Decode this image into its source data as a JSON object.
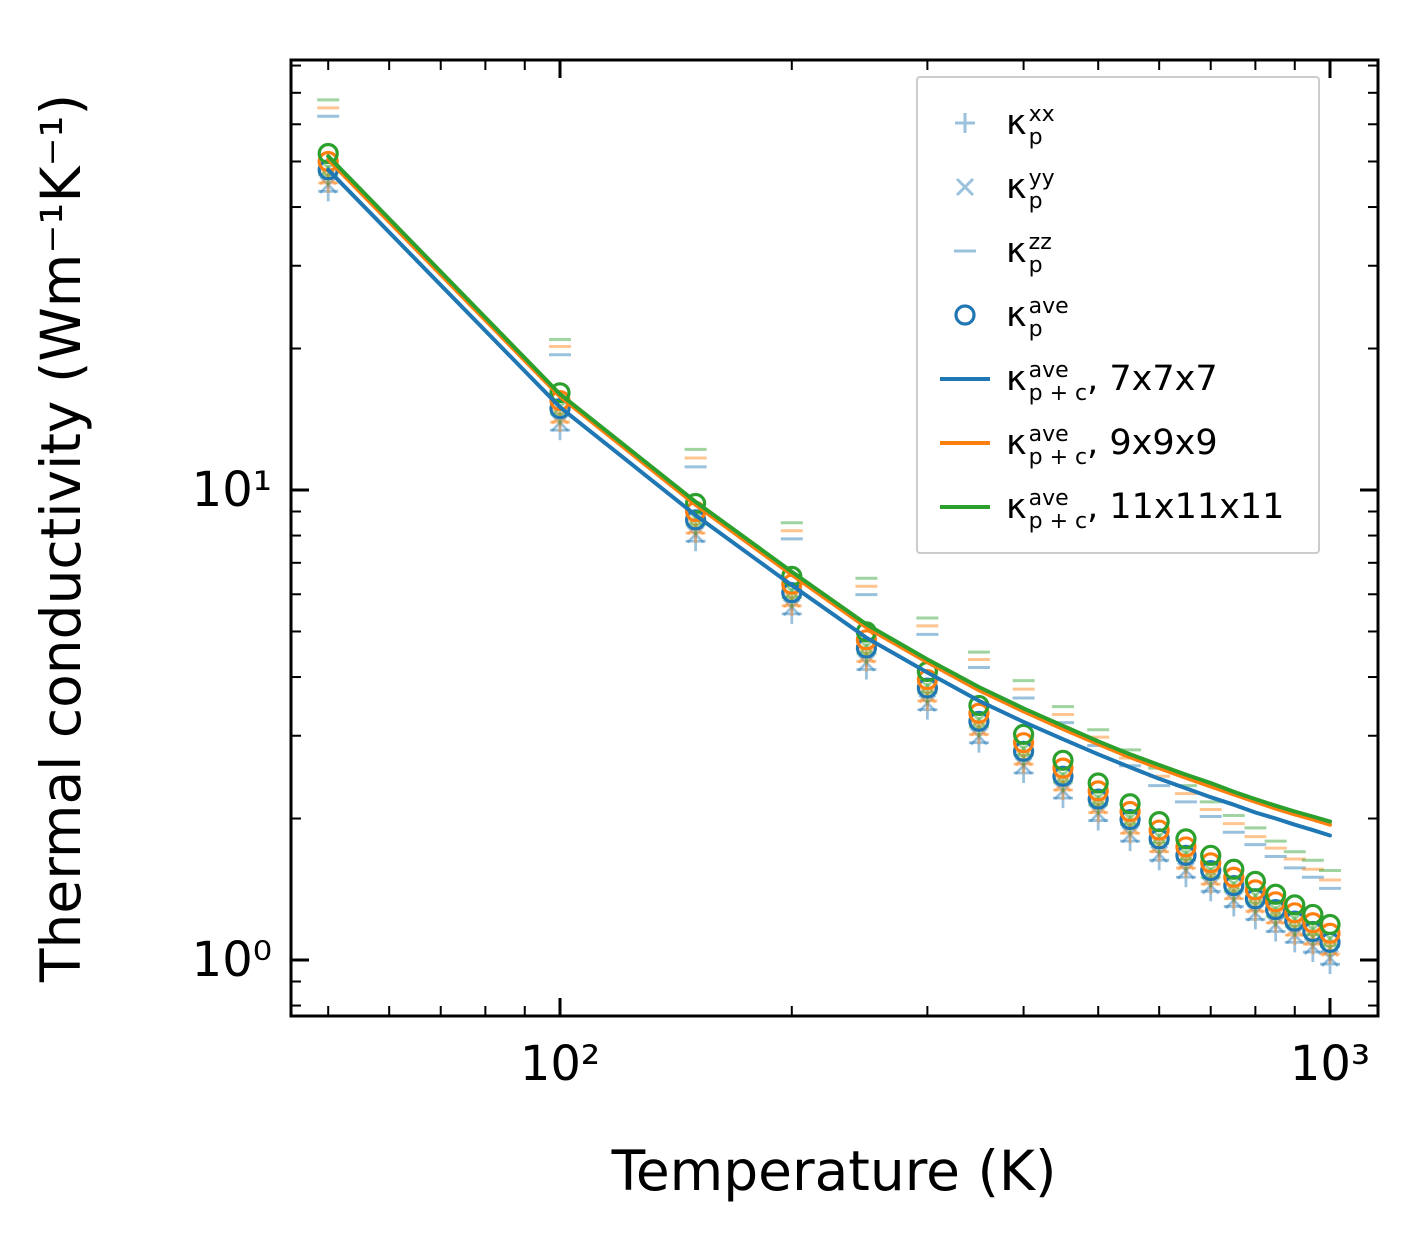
{
  "chart_data": {
    "type": "scatter+line",
    "title": "",
    "xlabel": "Temperature (K)",
    "ylabel": "Thermal conductivity (Wm⁻¹K⁻¹)",
    "x_scale": "log",
    "y_scale": "log",
    "x_range": [
      44.7,
      1154
    ],
    "y_range": [
      0.76,
      82
    ],
    "grid": false,
    "x_ticks": [
      {
        "value": 100,
        "label": "10²"
      },
      {
        "value": 1000,
        "label": "10³"
      }
    ],
    "y_ticks": [
      {
        "value": 10,
        "label": "10¹"
      },
      {
        "value": 1,
        "label": "10⁰"
      }
    ],
    "x_minor_ticks": [
      50,
      60,
      70,
      80,
      90,
      200,
      300,
      400,
      500,
      600,
      700,
      800,
      900
    ],
    "y_minor_ticks": [
      0.8,
      0.9,
      2,
      3,
      4,
      5,
      6,
      7,
      8,
      9,
      20,
      30,
      40,
      50,
      60,
      70,
      80
    ],
    "colors": {
      "blue": "#1f77b4",
      "orange": "#ff7f0e",
      "green": "#2ca02c"
    },
    "temperatures": [
      50,
      100,
      150,
      200,
      250,
      300,
      350,
      400,
      450,
      500,
      550,
      600,
      650,
      700,
      750,
      800,
      850,
      900,
      950,
      1000
    ],
    "scatter_series": [
      {
        "name": "kappa-p-xx-7x7x7",
        "marker": "plus",
        "color": "#1f77b4",
        "opacity": 0.45,
        "values": [
          43.2,
          13.4,
          7.78,
          5.45,
          4.15,
          3.41,
          2.9,
          2.5,
          2.21,
          1.98,
          1.79,
          1.63,
          1.5,
          1.4,
          1.3,
          1.22,
          1.15,
          1.09,
          1.04,
          0.98
        ]
      },
      {
        "name": "kappa-p-yy-7x7x7",
        "marker": "x",
        "color": "#1f77b4",
        "opacity": 0.45,
        "values": [
          44.6,
          13.9,
          8.04,
          5.63,
          4.29,
          3.52,
          2.99,
          2.59,
          2.29,
          2.05,
          1.85,
          1.68,
          1.55,
          1.44,
          1.34,
          1.26,
          1.19,
          1.13,
          1.07,
          1.01
        ]
      },
      {
        "name": "kappa-p-zz-7x7x7",
        "marker": "dash",
        "color": "#1f77b4",
        "opacity": 0.45,
        "values": [
          62.4,
          19.4,
          11.2,
          7.87,
          5.99,
          4.93,
          4.19,
          3.61,
          3.2,
          2.86,
          2.59,
          2.35,
          2.17,
          2.02,
          1.87,
          1.76,
          1.66,
          1.57,
          1.5,
          1.42
        ]
      },
      {
        "name": "kappa-p-xx-9x9x9",
        "marker": "plus",
        "color": "#ff7f0e",
        "opacity": 0.45,
        "values": [
          45,
          13.95,
          8.1,
          5.67,
          4.32,
          3.56,
          3.02,
          2.61,
          2.3,
          2.06,
          1.86,
          1.7,
          1.57,
          1.45,
          1.35,
          1.27,
          1.2,
          1.13,
          1.08,
          1.03
        ]
      },
      {
        "name": "kappa-p-yy-9x9x9",
        "marker": "x",
        "color": "#ff7f0e",
        "opacity": 0.45,
        "values": [
          46.5,
          14.4,
          8.37,
          5.86,
          4.46,
          3.67,
          3.12,
          2.7,
          2.38,
          2.13,
          1.93,
          1.76,
          1.62,
          1.5,
          1.4,
          1.31,
          1.24,
          1.17,
          1.12,
          1.06
        ]
      },
      {
        "name": "kappa-p-zz-9x9x9",
        "marker": "dash",
        "color": "#ff7f0e",
        "opacity": 0.45,
        "values": [
          65,
          20.2,
          11.7,
          8.19,
          6.24,
          5.14,
          4.36,
          3.77,
          3.33,
          2.98,
          2.69,
          2.46,
          2.26,
          2.09,
          1.95,
          1.83,
          1.73,
          1.64,
          1.56,
          1.48
        ]
      },
      {
        "name": "kappa-p-xx-11x11x11",
        "marker": "plus",
        "color": "#2ca02c",
        "opacity": 0.45,
        "values": [
          46.8,
          14.5,
          8.42,
          5.9,
          4.49,
          3.7,
          3.13,
          2.72,
          2.39,
          2.14,
          1.94,
          1.77,
          1.63,
          1.5,
          1.4,
          1.32,
          1.24,
          1.18,
          1.13,
          1.07
        ]
      },
      {
        "name": "kappa-p-yy-11x11x11",
        "marker": "x",
        "color": "#2ca02c",
        "opacity": 0.45,
        "values": [
          48.4,
          15.0,
          8.7,
          6.09,
          4.64,
          3.82,
          3.24,
          2.81,
          2.47,
          2.21,
          2.0,
          1.83,
          1.68,
          1.55,
          1.45,
          1.37,
          1.28,
          1.22,
          1.16,
          1.11
        ]
      },
      {
        "name": "kappa-p-zz-11x11x11",
        "marker": "dash",
        "color": "#2ca02c",
        "opacity": 0.45,
        "values": [
          67.6,
          20.9,
          12.2,
          8.52,
          6.49,
          5.34,
          4.52,
          3.93,
          3.46,
          3.09,
          2.8,
          2.56,
          2.35,
          2.17,
          2.03,
          1.91,
          1.79,
          1.7,
          1.63,
          1.55
        ]
      },
      {
        "name": "kappa-p-ave-7x7x7",
        "marker": "circle",
        "color": "#1f77b4",
        "opacity": 1,
        "values": [
          48,
          14.9,
          8.64,
          6.05,
          4.61,
          3.79,
          3.22,
          2.78,
          2.46,
          2.2,
          1.99,
          1.81,
          1.67,
          1.55,
          1.44,
          1.35,
          1.28,
          1.21,
          1.15,
          1.09
        ]
      },
      {
        "name": "kappa-p-ave-9x9x9",
        "marker": "circle",
        "color": "#ff7f0e",
        "opacity": 1,
        "values": [
          50,
          15.5,
          9.0,
          6.3,
          4.8,
          3.95,
          3.35,
          2.9,
          2.56,
          2.29,
          2.07,
          1.89,
          1.74,
          1.61,
          1.5,
          1.41,
          1.33,
          1.26,
          1.2,
          1.14
        ]
      },
      {
        "name": "kappa-p-ave-11x11x11",
        "marker": "circle",
        "color": "#2ca02c",
        "opacity": 1,
        "values": [
          52,
          16.1,
          9.36,
          6.55,
          4.99,
          4.11,
          3.48,
          3.02,
          2.66,
          2.38,
          2.15,
          1.97,
          1.81,
          1.67,
          1.56,
          1.47,
          1.38,
          1.31,
          1.25,
          1.19
        ]
      }
    ],
    "line_series": [
      {
        "name": "kappa-pc-ave-7x7x7",
        "color": "#1f77b4",
        "values": [
          48,
          15.0,
          8.84,
          6.27,
          4.85,
          4.09,
          3.56,
          3.21,
          2.95,
          2.74,
          2.57,
          2.43,
          2.32,
          2.22,
          2.14,
          2.06,
          2.0,
          1.94,
          1.89,
          1.84
        ]
      },
      {
        "name": "kappa-pc-ave-9x9x9",
        "color": "#ff7f0e",
        "values": [
          50.5,
          15.8,
          9.3,
          6.6,
          5.1,
          4.3,
          3.75,
          3.38,
          3.1,
          2.88,
          2.7,
          2.56,
          2.44,
          2.34,
          2.25,
          2.17,
          2.1,
          2.04,
          1.99,
          1.94
        ]
      },
      {
        "name": "kappa-pc-ave-11x11x11",
        "color": "#2ca02c",
        "values": [
          51.3,
          16.0,
          9.44,
          6.7,
          5.18,
          4.36,
          3.81,
          3.43,
          3.15,
          2.92,
          2.74,
          2.6,
          2.48,
          2.38,
          2.28,
          2.2,
          2.13,
          2.07,
          2.02,
          1.97
        ]
      }
    ],
    "legend": {
      "position": "upper right",
      "entries": [
        {
          "name": "kappa-p-xx",
          "marker": "plus",
          "color": "rgba(31,119,180,0.45)",
          "kappa": "κ",
          "sup": "xx",
          "sub": "p",
          "suffix": ""
        },
        {
          "name": "kappa-p-yy",
          "marker": "x",
          "color": "rgba(31,119,180,0.45)",
          "kappa": "κ",
          "sup": "yy",
          "sub": "p",
          "suffix": ""
        },
        {
          "name": "kappa-p-zz",
          "marker": "dash",
          "color": "rgba(31,119,180,0.45)",
          "kappa": "κ",
          "sup": "zz",
          "sub": "p",
          "suffix": ""
        },
        {
          "name": "kappa-p-ave",
          "marker": "circle",
          "color": "#1f77b4",
          "kappa": "κ",
          "sup": "ave",
          "sub": "p",
          "suffix": ""
        },
        {
          "name": "kappa-pc-ave-7x7x7",
          "marker": "line",
          "color": "#1f77b4",
          "kappa": "κ",
          "sup": "ave",
          "sub": "p + c",
          "suffix": ", 7x7x7"
        },
        {
          "name": "kappa-pc-ave-9x9x9",
          "marker": "line",
          "color": "#ff7f0e",
          "kappa": "κ",
          "sup": "ave",
          "sub": "p + c",
          "suffix": ", 9x9x9"
        },
        {
          "name": "kappa-pc-ave-11x11x11",
          "marker": "line",
          "color": "#2ca02c",
          "kappa": "κ",
          "sup": "ave",
          "sub": "p + c",
          "suffix": ", 11x11x11"
        }
      ]
    }
  }
}
